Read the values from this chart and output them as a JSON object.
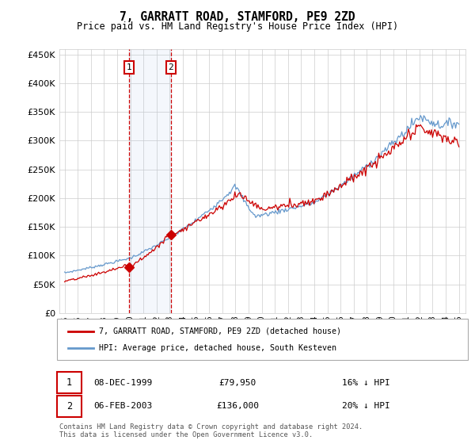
{
  "title": "7, GARRATT ROAD, STAMFORD, PE9 2ZD",
  "subtitle": "Price paid vs. HM Land Registry's House Price Index (HPI)",
  "ylim": [
    0,
    460000
  ],
  "yticks": [
    0,
    50000,
    100000,
    150000,
    200000,
    250000,
    300000,
    350000,
    400000,
    450000
  ],
  "hpi_color": "#6699cc",
  "price_color": "#cc0000",
  "marker1_date_label": "08-DEC-1999",
  "marker1_price": 79950,
  "marker1_price_str": "£79,950",
  "marker1_hpi_pct": "16% ↓ HPI",
  "marker2_date_label": "06-FEB-2003",
  "marker2_price": 136000,
  "marker2_price_str": "£136,000",
  "marker2_hpi_pct": "20% ↓ HPI",
  "legend_line1": "7, GARRATT ROAD, STAMFORD, PE9 2ZD (detached house)",
  "legend_line2": "HPI: Average price, detached house, South Kesteven",
  "footer": "Contains HM Land Registry data © Crown copyright and database right 2024.\nThis data is licensed under the Open Government Licence v3.0.",
  "background_color": "#ffffff",
  "grid_color": "#cccccc",
  "sale1_x": 1999.92,
  "sale2_x": 2003.09
}
